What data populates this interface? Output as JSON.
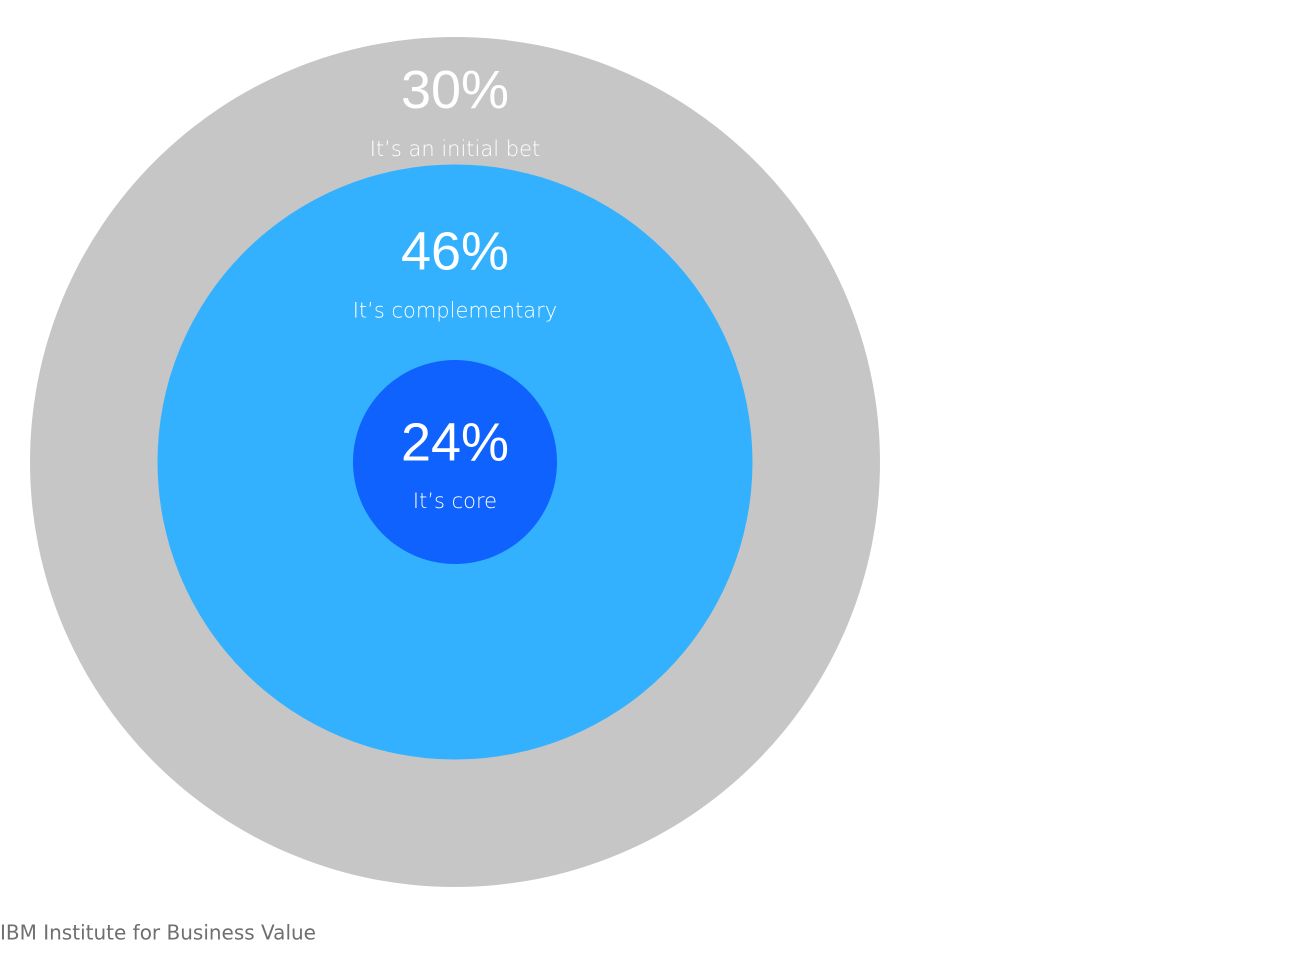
{
  "chart_data": {
    "type": "concentric",
    "categories": [
      "It’s core",
      "It’s complementary",
      "It’s an initial bet"
    ],
    "values": [
      24,
      46,
      30
    ],
    "value_labels": [
      "24%",
      "46%",
      "30%"
    ],
    "colors": [
      "#0f62fe",
      "#33b1ff",
      "#c6c6c6"
    ],
    "source": "IBM Institute for Business Value"
  }
}
